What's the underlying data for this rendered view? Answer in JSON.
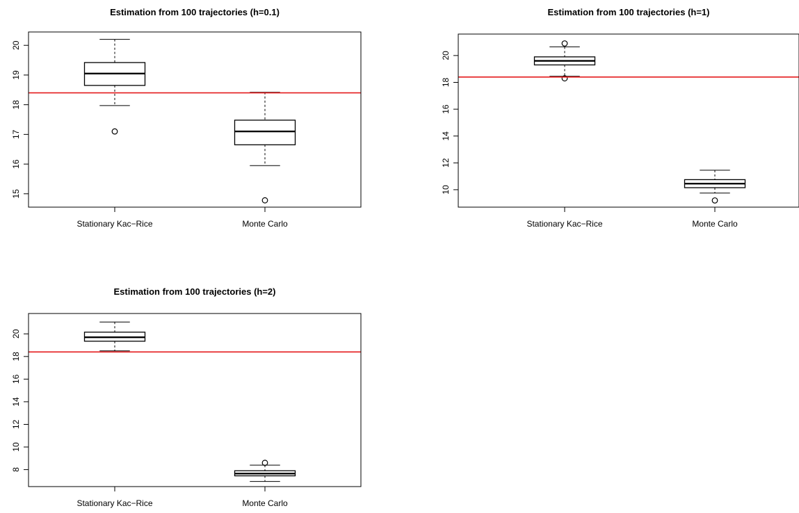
{
  "chart_data": [
    {
      "type": "boxplot",
      "title": "Estimation from 100 trajectories (h=0.1)",
      "categories": [
        "Stationary Kac−Rice",
        "Monte Carlo"
      ],
      "ylim": [
        14.55,
        20.45
      ],
      "yticks": [
        15,
        16,
        17,
        18,
        19,
        20
      ],
      "reference_line": {
        "y": 18.4,
        "color": "#e41a1c"
      },
      "boxes": [
        {
          "min": 17.97,
          "q1": 18.65,
          "median": 19.05,
          "q3": 19.42,
          "max": 20.2,
          "outliers": [
            17.1
          ]
        },
        {
          "min": 15.95,
          "q1": 16.65,
          "median": 17.1,
          "q3": 17.48,
          "max": 18.42,
          "outliers": [
            14.78
          ]
        }
      ]
    },
    {
      "type": "boxplot",
      "title": "Estimation from 100 trajectories (h=1)",
      "categories": [
        "Stationary Kac−Rice",
        "Monte Carlo"
      ],
      "ylim": [
        8.7,
        21.6
      ],
      "yticks": [
        10,
        12,
        14,
        16,
        18,
        20
      ],
      "reference_line": {
        "y": 18.4,
        "color": "#e41a1c"
      },
      "boxes": [
        {
          "min": 18.45,
          "q1": 19.3,
          "median": 19.6,
          "q3": 19.9,
          "max": 20.65,
          "outliers": [
            18.3,
            20.9
          ]
        },
        {
          "min": 9.75,
          "q1": 10.15,
          "median": 10.45,
          "q3": 10.75,
          "max": 11.45,
          "outliers": [
            9.2
          ]
        }
      ]
    },
    {
      "type": "boxplot",
      "title": "Estimation from 100 trajectories (h=2)",
      "categories": [
        "Stationary Kac−Rice",
        "Monte Carlo"
      ],
      "ylim": [
        6.5,
        21.8
      ],
      "yticks": [
        8,
        10,
        12,
        14,
        16,
        18,
        20
      ],
      "reference_line": {
        "y": 18.4,
        "color": "#e41a1c"
      },
      "boxes": [
        {
          "min": 18.5,
          "q1": 19.35,
          "median": 19.7,
          "q3": 20.15,
          "max": 21.05,
          "outliers": []
        },
        {
          "min": 6.95,
          "q1": 7.45,
          "median": 7.65,
          "q3": 7.9,
          "max": 8.4,
          "outliers": [
            8.6
          ]
        }
      ]
    }
  ]
}
